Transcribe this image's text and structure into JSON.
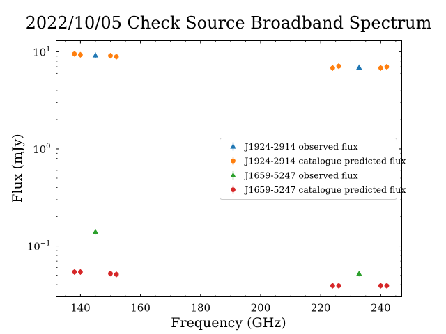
{
  "chart_data": {
    "type": "scatter",
    "title": "2022/10/05 Check Source Broadband Spectrum",
    "xlabel": "Frequency (GHz)",
    "ylabel": "Flux (mJy)",
    "xlim": [
      131.9,
      247.0
    ],
    "ylim": [
      0.03,
      13.0
    ],
    "yscale": "log",
    "x_ticks": [
      {
        "value": 140,
        "label": "140"
      },
      {
        "value": 160,
        "label": "160"
      },
      {
        "value": 180,
        "label": "180"
      },
      {
        "value": 200,
        "label": "200"
      },
      {
        "value": 220,
        "label": "220"
      },
      {
        "value": 240,
        "label": "240"
      }
    ],
    "y_ticks": [
      {
        "value": 0.1,
        "base": "10",
        "exp": "−1"
      },
      {
        "value": 1,
        "base": "10",
        "exp": "0"
      },
      {
        "value": 10,
        "base": "10",
        "exp": "1"
      }
    ],
    "legend_position": "center-right",
    "series": [
      {
        "name": "J1924-2914 observed flux",
        "marker": "triangle",
        "color": "#1f77b4",
        "points": [
          {
            "x": 145.0,
            "y": 9.2
          },
          {
            "x": 232.8,
            "y": 6.9
          }
        ]
      },
      {
        "name": "J1924-2914 catalogue predicted flux",
        "marker": "circle",
        "color": "#ff7f0e",
        "points": [
          {
            "x": 138.0,
            "y": 9.5
          },
          {
            "x": 140.0,
            "y": 9.3
          },
          {
            "x": 150.0,
            "y": 9.1
          },
          {
            "x": 152.0,
            "y": 8.9
          },
          {
            "x": 224.0,
            "y": 6.8
          },
          {
            "x": 226.0,
            "y": 7.1
          },
          {
            "x": 240.0,
            "y": 6.8
          },
          {
            "x": 242.0,
            "y": 7.0
          }
        ]
      },
      {
        "name": "J1659-5247 observed flux",
        "marker": "triangle",
        "color": "#2ca02c",
        "points": [
          {
            "x": 145.0,
            "y": 0.14
          },
          {
            "x": 232.8,
            "y": 0.052
          }
        ]
      },
      {
        "name": "J1659-5247 catalogue predicted flux",
        "marker": "circle",
        "color": "#d62728",
        "points": [
          {
            "x": 138.0,
            "y": 0.054
          },
          {
            "x": 140.0,
            "y": 0.054
          },
          {
            "x": 150.0,
            "y": 0.052
          },
          {
            "x": 152.0,
            "y": 0.051
          },
          {
            "x": 224.0,
            "y": 0.039
          },
          {
            "x": 226.0,
            "y": 0.039
          },
          {
            "x": 240.0,
            "y": 0.039
          },
          {
            "x": 242.0,
            "y": 0.039
          }
        ]
      }
    ]
  }
}
